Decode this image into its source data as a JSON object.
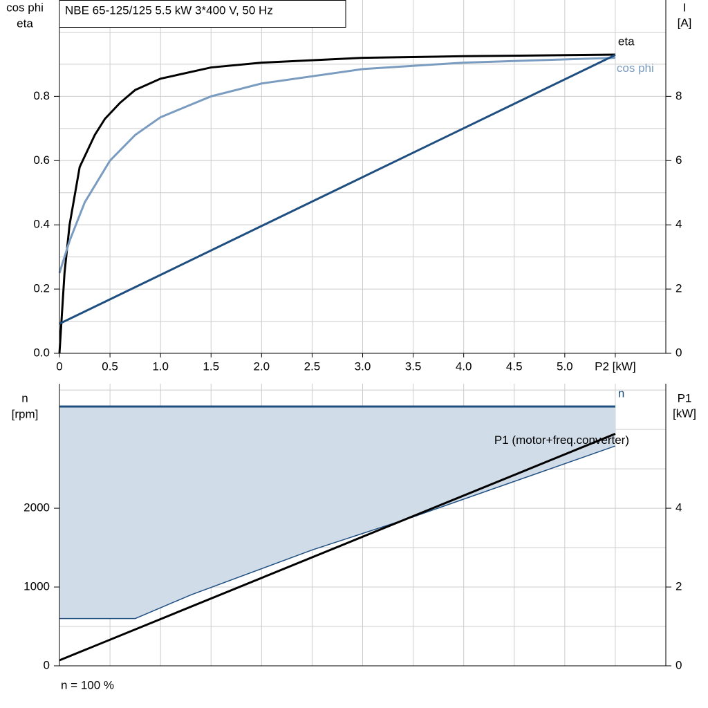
{
  "chart_data": [
    {
      "type": "line",
      "title": "NBE 65-125/125   5.5 kW   3*400 V, 50 Hz",
      "y_label": [
        "cos phi",
        "eta"
      ],
      "y2_label": [
        "I",
        "[A]"
      ],
      "xlim": [
        0,
        6
      ],
      "ylim": [
        0,
        1.1
      ],
      "y2lim": [
        0,
        11
      ],
      "xticks": [
        {
          "value": 0,
          "label": "0"
        },
        0.5,
        {
          "value": 1,
          "label": "1.0"
        },
        1.5,
        {
          "value": 2,
          "label": "2.0"
        },
        2.5,
        {
          "value": 3,
          "label": "3.0"
        },
        3.5,
        {
          "value": 4,
          "label": "4.0"
        },
        4.5,
        {
          "value": 5,
          "label": "5.0"
        },
        {
          "value": 5.5,
          "label": "P2 [kW]"
        }
      ],
      "xgrid": [
        0.5,
        1,
        1.5,
        2,
        2.5,
        3,
        3.5,
        4,
        4.5,
        5,
        5.5
      ],
      "yticks": [
        {
          "value": 0,
          "label": "0.0"
        },
        0.2,
        0.4,
        0.6,
        0.8
      ],
      "ygrid": [
        0.1,
        0.2,
        0.3,
        0.4,
        0.5,
        0.6,
        0.7,
        0.8,
        0.9,
        1.0
      ],
      "y2ticks": [
        0,
        2,
        4,
        6,
        8
      ],
      "grid": true,
      "series": [
        {
          "name": "eta",
          "color": "#000000",
          "x": [
            0,
            0.05,
            0.1,
            0.2,
            0.35,
            0.45,
            0.6,
            0.75,
            1,
            1.5,
            2,
            3,
            4,
            5.5
          ],
          "values": [
            0,
            0.25,
            0.4,
            0.58,
            0.68,
            0.73,
            0.78,
            0.82,
            0.855,
            0.89,
            0.905,
            0.92,
            0.925,
            0.93
          ]
        },
        {
          "name": "cos phi",
          "color": "#7a9cc0",
          "x": [
            0,
            0.1,
            0.25,
            0.5,
            0.75,
            1,
            1.5,
            2,
            3,
            4,
            5.5
          ],
          "values": [
            0.25,
            0.35,
            0.47,
            0.6,
            0.68,
            0.735,
            0.8,
            0.84,
            0.885,
            0.905,
            0.92
          ]
        },
        {
          "color": "#1f4e80",
          "axis": "y2",
          "x": [
            0,
            5.5
          ],
          "values": [
            0.92,
            9.29
          ]
        }
      ]
    },
    {
      "type": "line",
      "y_label": [
        "n",
        "[rpm]"
      ],
      "y2_label": [
        "P1",
        "[kW]"
      ],
      "note": "n = 100 %",
      "xlim": [
        0,
        6
      ],
      "ylim": [
        0,
        3580
      ],
      "y2lim": [
        0,
        7.16
      ],
      "xgrid": [
        0.5,
        1,
        1.5,
        2,
        2.5,
        3,
        3.5,
        4,
        4.5,
        5,
        5.5
      ],
      "yticks": [
        0,
        1000,
        2000
      ],
      "ygrid": [
        500,
        1000,
        1500,
        2000,
        2500,
        3000,
        3500
      ],
      "y2ticks": [
        0,
        2,
        4
      ],
      "grid": true,
      "fill_lower": {
        "color": "#d0dce8",
        "x": [
          0,
          0.75,
          1.3,
          2.5,
          3.5,
          5.5
        ],
        "values": [
          600,
          600,
          900,
          1470,
          1890,
          2790
        ]
      },
      "series": [
        {
          "name": "n",
          "color": "#1f4e80",
          "x": [
            0,
            5.5
          ],
          "values": [
            3290,
            3290
          ]
        },
        {
          "name": "P1 (motor+freq.converter)",
          "color": "#000000",
          "axis": "y2",
          "x": [
            0,
            5.5
          ],
          "values": [
            0.14,
            5.89
          ]
        }
      ]
    }
  ]
}
